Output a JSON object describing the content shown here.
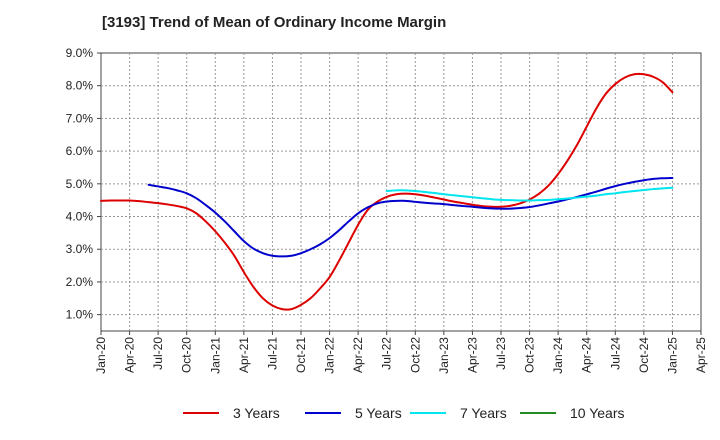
{
  "chart_data": {
    "type": "line",
    "title": "[3193]  Trend of Mean of Ordinary Income Margin",
    "xlabel": "",
    "ylabel": "",
    "x_ticks": [
      "Jan-20",
      "Apr-20",
      "Jul-20",
      "Oct-20",
      "Jan-21",
      "Apr-21",
      "Jul-21",
      "Oct-21",
      "Jan-22",
      "Apr-22",
      "Jul-22",
      "Oct-22",
      "Jan-23",
      "Apr-23",
      "Jul-23",
      "Oct-23",
      "Jan-24",
      "Apr-24",
      "Jul-24",
      "Oct-24",
      "Jan-25",
      "Apr-25"
    ],
    "y_ticks": [
      "1.0%",
      "2.0%",
      "3.0%",
      "4.0%",
      "5.0%",
      "6.0%",
      "7.0%",
      "8.0%",
      "9.0%"
    ],
    "ylim": [
      0.5,
      9.0
    ],
    "grid": true,
    "legend_position": "bottom",
    "series": [
      {
        "name": "3 Years",
        "color": "#dd0000",
        "points": [
          [
            "Jan-20",
            4.48
          ],
          [
            "Feb-20",
            4.49
          ],
          [
            "Mar-20",
            4.49
          ],
          [
            "Apr-20",
            4.49
          ],
          [
            "May-20",
            4.47
          ],
          [
            "Jun-20",
            4.44
          ],
          [
            "Jul-20",
            4.41
          ],
          [
            "Aug-20",
            4.37
          ],
          [
            "Sep-20",
            4.32
          ],
          [
            "Oct-20",
            4.25
          ],
          [
            "Nov-20",
            4.1
          ],
          [
            "Dec-20",
            3.85
          ],
          [
            "Jan-21",
            3.55
          ],
          [
            "Feb-21",
            3.2
          ],
          [
            "Mar-21",
            2.8
          ],
          [
            "Apr-21",
            2.3
          ],
          [
            "May-21",
            1.85
          ],
          [
            "Jun-21",
            1.5
          ],
          [
            "Jul-21",
            1.28
          ],
          [
            "Aug-21",
            1.17
          ],
          [
            "Sep-21",
            1.17
          ],
          [
            "Oct-21",
            1.3
          ],
          [
            "Nov-21",
            1.5
          ],
          [
            "Dec-21",
            1.8
          ],
          [
            "Jan-22",
            2.15
          ],
          [
            "Feb-22",
            2.65
          ],
          [
            "Mar-22",
            3.2
          ],
          [
            "Apr-22",
            3.75
          ],
          [
            "May-22",
            4.2
          ],
          [
            "Jun-22",
            4.45
          ],
          [
            "Jul-22",
            4.6
          ],
          [
            "Aug-22",
            4.68
          ],
          [
            "Sep-22",
            4.7
          ],
          [
            "Oct-22",
            4.68
          ],
          [
            "Nov-22",
            4.64
          ],
          [
            "Dec-22",
            4.58
          ],
          [
            "Jan-23",
            4.52
          ],
          [
            "Feb-23",
            4.46
          ],
          [
            "Mar-23",
            4.41
          ],
          [
            "Apr-23",
            4.36
          ],
          [
            "May-23",
            4.32
          ],
          [
            "Jun-23",
            4.3
          ],
          [
            "Jul-23",
            4.3
          ],
          [
            "Aug-23",
            4.33
          ],
          [
            "Sep-23",
            4.4
          ],
          [
            "Oct-23",
            4.52
          ],
          [
            "Nov-23",
            4.7
          ],
          [
            "Dec-23",
            4.95
          ],
          [
            "Jan-24",
            5.3
          ],
          [
            "Feb-24",
            5.72
          ],
          [
            "Mar-24",
            6.2
          ],
          [
            "Apr-24",
            6.75
          ],
          [
            "May-24",
            7.3
          ],
          [
            "Jun-24",
            7.75
          ],
          [
            "Jul-24",
            8.05
          ],
          [
            "Aug-24",
            8.25
          ],
          [
            "Sep-24",
            8.35
          ],
          [
            "Oct-24",
            8.35
          ],
          [
            "Nov-24",
            8.27
          ],
          [
            "Dec-24",
            8.1
          ],
          [
            "Jan-25",
            7.8
          ]
        ]
      },
      {
        "name": "5 Years",
        "color": "#0000cc",
        "points": [
          [
            "Jun-20",
            4.97
          ],
          [
            "Jul-20",
            4.92
          ],
          [
            "Aug-20",
            4.87
          ],
          [
            "Sep-20",
            4.8
          ],
          [
            "Oct-20",
            4.71
          ],
          [
            "Nov-20",
            4.56
          ],
          [
            "Dec-20",
            4.35
          ],
          [
            "Jan-21",
            4.12
          ],
          [
            "Feb-21",
            3.85
          ],
          [
            "Mar-21",
            3.55
          ],
          [
            "Apr-21",
            3.25
          ],
          [
            "May-21",
            3.02
          ],
          [
            "Jun-21",
            2.88
          ],
          [
            "Jul-21",
            2.8
          ],
          [
            "Aug-21",
            2.78
          ],
          [
            "Sep-21",
            2.8
          ],
          [
            "Oct-21",
            2.88
          ],
          [
            "Nov-21",
            3.0
          ],
          [
            "Dec-21",
            3.15
          ],
          [
            "Jan-22",
            3.34
          ],
          [
            "Feb-22",
            3.58
          ],
          [
            "Mar-22",
            3.85
          ],
          [
            "Apr-22",
            4.1
          ],
          [
            "May-22",
            4.28
          ],
          [
            "Jun-22",
            4.4
          ],
          [
            "Jul-22",
            4.46
          ],
          [
            "Aug-22",
            4.48
          ],
          [
            "Sep-22",
            4.48
          ],
          [
            "Oct-22",
            4.45
          ],
          [
            "Nov-22",
            4.42
          ],
          [
            "Dec-22",
            4.4
          ],
          [
            "Jan-23",
            4.38
          ],
          [
            "Feb-23",
            4.35
          ],
          [
            "Mar-23",
            4.32
          ],
          [
            "Apr-23",
            4.3
          ],
          [
            "May-23",
            4.27
          ],
          [
            "Jun-23",
            4.25
          ],
          [
            "Jul-23",
            4.24
          ],
          [
            "Aug-23",
            4.24
          ],
          [
            "Sep-23",
            4.26
          ],
          [
            "Oct-23",
            4.29
          ],
          [
            "Nov-23",
            4.34
          ],
          [
            "Dec-23",
            4.4
          ],
          [
            "Jan-24",
            4.46
          ],
          [
            "Feb-24",
            4.53
          ],
          [
            "Mar-24",
            4.6
          ],
          [
            "Apr-24",
            4.68
          ],
          [
            "May-24",
            4.76
          ],
          [
            "Jun-24",
            4.85
          ],
          [
            "Jul-24",
            4.93
          ],
          [
            "Aug-24",
            5.0
          ],
          [
            "Sep-24",
            5.06
          ],
          [
            "Oct-24",
            5.11
          ],
          [
            "Nov-24",
            5.15
          ],
          [
            "Dec-24",
            5.17
          ],
          [
            "Jan-25",
            5.18
          ]
        ]
      },
      {
        "name": "7 Years",
        "color": "#00e5ee",
        "points": [
          [
            "Jul-22",
            4.78
          ],
          [
            "Aug-22",
            4.8
          ],
          [
            "Sep-22",
            4.8
          ],
          [
            "Oct-22",
            4.78
          ],
          [
            "Nov-22",
            4.75
          ],
          [
            "Dec-22",
            4.72
          ],
          [
            "Jan-23",
            4.68
          ],
          [
            "Feb-23",
            4.65
          ],
          [
            "Mar-23",
            4.62
          ],
          [
            "Apr-23",
            4.59
          ],
          [
            "May-23",
            4.56
          ],
          [
            "Jun-23",
            4.53
          ],
          [
            "Jul-23",
            4.51
          ],
          [
            "Aug-23",
            4.5
          ],
          [
            "Sep-23",
            4.49
          ],
          [
            "Oct-23",
            4.49
          ],
          [
            "Nov-23",
            4.5
          ],
          [
            "Dec-23",
            4.51
          ],
          [
            "Jan-24",
            4.53
          ],
          [
            "Feb-24",
            4.55
          ],
          [
            "Mar-24",
            4.58
          ],
          [
            "Apr-24",
            4.61
          ],
          [
            "May-24",
            4.64
          ],
          [
            "Jun-24",
            4.68
          ],
          [
            "Jul-24",
            4.71
          ],
          [
            "Aug-24",
            4.75
          ],
          [
            "Sep-24",
            4.78
          ],
          [
            "Oct-24",
            4.81
          ],
          [
            "Nov-24",
            4.84
          ],
          [
            "Dec-24",
            4.86
          ],
          [
            "Jan-25",
            4.88
          ]
        ]
      },
      {
        "name": "10 Years",
        "color": "#228b22",
        "points": []
      }
    ]
  }
}
